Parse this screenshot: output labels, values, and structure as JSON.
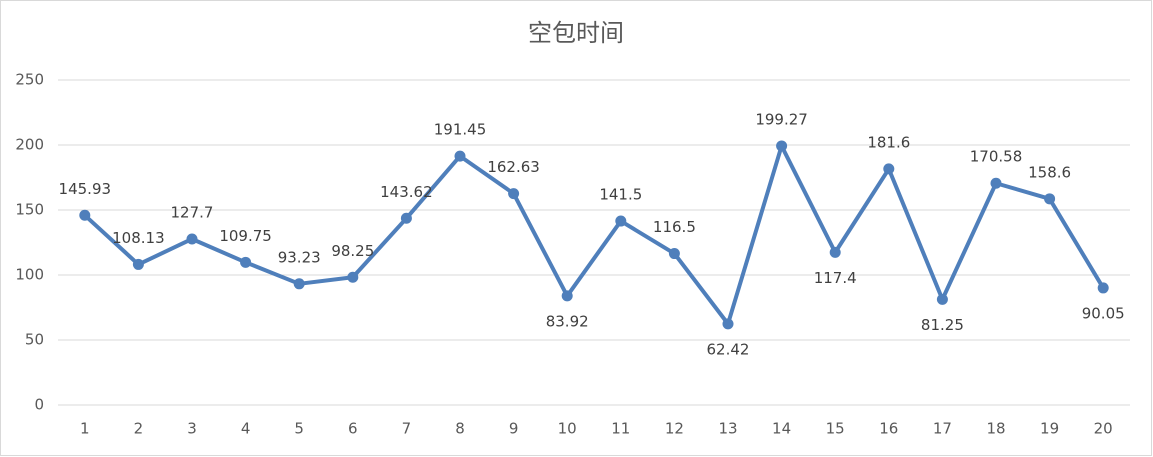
{
  "chart_data": {
    "type": "line",
    "title": "空包时间",
    "categories": [
      "1",
      "2",
      "3",
      "4",
      "5",
      "6",
      "7",
      "8",
      "9",
      "10",
      "11",
      "12",
      "13",
      "14",
      "15",
      "16",
      "17",
      "18",
      "19",
      "20"
    ],
    "series": [
      {
        "name": "空包时间",
        "color": "#4f7fbb",
        "values": [
          145.93,
          108.13,
          127.7,
          109.75,
          93.23,
          98.25,
          143.62,
          191.45,
          162.63,
          83.92,
          141.5,
          116.5,
          62.42,
          199.27,
          117.4,
          181.6,
          81.25,
          170.58,
          158.6,
          90.05
        ]
      }
    ],
    "ylim": [
      0,
      250
    ],
    "yticks": [
      0,
      50,
      100,
      150,
      200,
      250
    ],
    "grid": true
  }
}
